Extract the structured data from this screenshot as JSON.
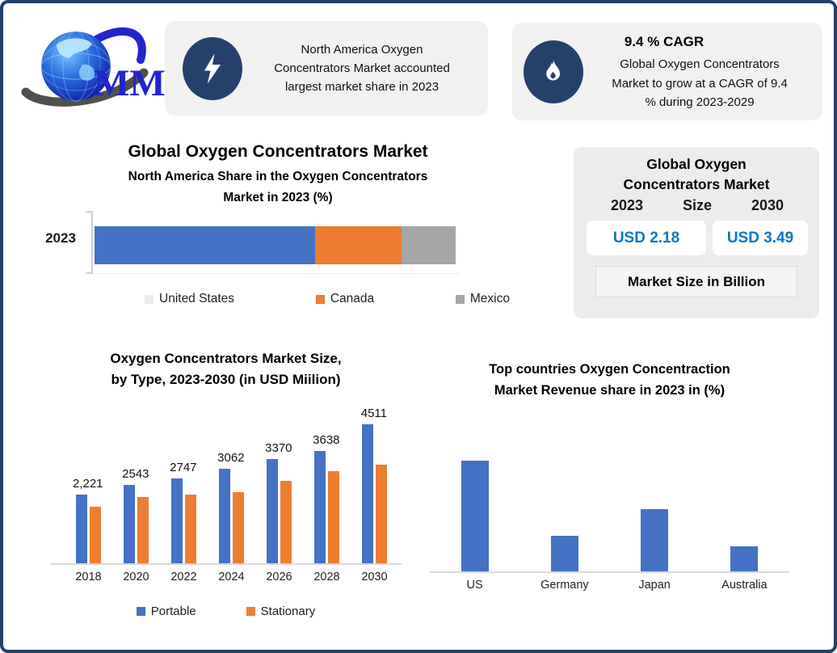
{
  "colors": {
    "border_navy": "#21406c",
    "icon_navy": "#24416e",
    "card_bg": "#f1f1f1",
    "panel_bg": "#ececec",
    "series_blue": "#4472c4",
    "series_orange": "#ed7d31",
    "series_gray": "#a6a6a6",
    "usd_blue": "#0d76c2"
  },
  "logo": {
    "text": "MMR"
  },
  "header_cards": [
    {
      "icon": "lightning-icon",
      "text_lines": [
        "North America Oxygen",
        "Concentrators Market accounted",
        "largest market share in 2023"
      ]
    },
    {
      "icon": "flame-icon",
      "title": "9.4 % CAGR",
      "text_lines": [
        "Global Oxygen Concentrators",
        "Market to grow at a CAGR of 9.4",
        "% during 2023-2029"
      ]
    }
  ],
  "main_title": "Global Oxygen Concentrators Market",
  "market_size_panel": {
    "title_line1": "Global Oxygen",
    "title_line2": "Concentrators Market",
    "word_size": "Size",
    "year_left": "2023",
    "year_right": "2030",
    "value_left": "USD 2.18",
    "value_right": "USD 3.49",
    "footnote": "Market Size in Billion"
  },
  "chart_data": [
    {
      "id": "na-share",
      "type": "bar",
      "subtype": "stacked-horizontal",
      "title": "North America Share in the Oxygen Concentrators Market in 2023 (%)",
      "title_lines": [
        "North America Share in the Oxygen Concentrators",
        "Market in 2023 (%)"
      ],
      "categories": [
        "2023"
      ],
      "series": [
        {
          "name": "United States",
          "values": [
            61
          ],
          "color": "#4472c4",
          "legend_marker_color": "#ebebeb"
        },
        {
          "name": "Canada",
          "values": [
            24
          ],
          "color": "#ed7d31",
          "legend_marker_color": "#ed7d31"
        },
        {
          "name": "Mexico",
          "values": [
            15
          ],
          "color": "#a6a6a6",
          "legend_marker_color": "#a6a6a6"
        }
      ],
      "values_estimated": true,
      "legend_position": "bottom"
    },
    {
      "id": "type-size",
      "type": "bar",
      "title": "Oxygen Concentrators Market Size, by Type, 2023-2030 (in USD Miilion)",
      "title_lines": [
        "Oxygen Concentrators Market Size,",
        "by Type, 2023-2030 (in USD Miilion)"
      ],
      "categories": [
        "2018",
        "2020",
        "2022",
        "2024",
        "2026",
        "2028",
        "2030"
      ],
      "series": [
        {
          "name": "Portable",
          "color": "#4472c4",
          "values": [
            2221,
            2543,
            2747,
            3062,
            3370,
            3638,
            4511
          ],
          "data_labels": [
            "2,221",
            "2543",
            "2747",
            "3062",
            "3370",
            "3638",
            "4511"
          ]
        },
        {
          "name": "Stationary",
          "color": "#ed7d31",
          "values": [
            1825,
            2150,
            2230,
            2310,
            2660,
            2980,
            3195
          ],
          "values_estimated": true
        }
      ],
      "ylim": [
        0,
        4750
      ],
      "legend_position": "bottom",
      "grid": false
    },
    {
      "id": "top-countries",
      "type": "bar",
      "title": "Top countries Oxygen Concentraction Market Revenue share in 2023 in (%)",
      "title_lines": [
        "Top countries Oxygen Concentraction",
        "Market Revenue share in 2023 in (%)"
      ],
      "categories": [
        "US",
        "Germany",
        "Japan",
        "Australia"
      ],
      "values": [
        41,
        13,
        23,
        9.3
      ],
      "color": "#4472c4",
      "ylim": [
        0,
        45
      ],
      "values_estimated": true,
      "grid": false
    }
  ]
}
